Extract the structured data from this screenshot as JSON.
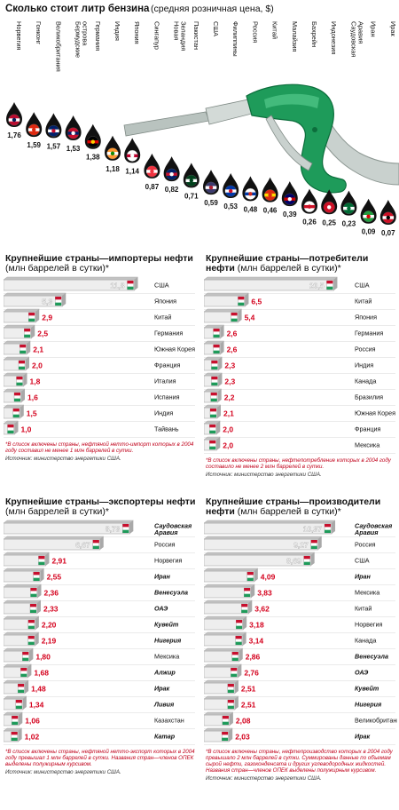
{
  "chart_data": [
    {
      "type": "scatter",
      "title": "Сколько стоит литр бензина",
      "subtitle": "(средняя розничная цена, $)",
      "categories": [
        "Норвегия",
        "Гонконг",
        "Великобритания",
        "Бермудские острова",
        "Германия",
        "Индия",
        "Япония",
        "Сингапур",
        "Новая Зеландия",
        "Пакистан",
        "США",
        "Филиппины",
        "Россия",
        "Китай",
        "Малайзия",
        "Бахрейн",
        "Индонезия",
        "Саудовская Аравия",
        "Иран",
        "Ирак"
      ],
      "value_labels": [
        "1,76",
        "1,59",
        "1,57",
        "1,53",
        "1,38",
        "1,18",
        "1,14",
        "0,87",
        "0,82",
        "0,71",
        "0,59",
        "0,53",
        "0,48",
        "0,46",
        "0,39",
        "0,26",
        "0,25",
        "0,23",
        "0,09",
        "0,07"
      ],
      "values": [
        1.76,
        1.59,
        1.57,
        1.53,
        1.38,
        1.18,
        1.14,
        0.87,
        0.82,
        0.71,
        0.59,
        0.53,
        0.48,
        0.46,
        0.39,
        0.26,
        0.25,
        0.23,
        0.09,
        0.07
      ],
      "colors": {
        "drop": "#111111",
        "nozzle": "#1e9b5a",
        "nozzle_dark": "#0c6e3c",
        "hose": "#cfd6d3"
      }
    },
    {
      "type": "bar",
      "title": "Крупнейшие страны—импортеры нефти",
      "subtitle": "(млн баррелей в сутки)*",
      "categories": [
        "США",
        "Япония",
        "Китай",
        "Германия",
        "Южная Корея",
        "Франция",
        "Италия",
        "Испания",
        "Индия",
        "Тайвань"
      ],
      "value_labels": [
        "11,8",
        "5,3",
        "2,9",
        "2,5",
        "2,1",
        "2,0",
        "1,8",
        "1,6",
        "1,5",
        "1,0"
      ],
      "values": [
        11.8,
        5.3,
        2.9,
        2.5,
        2.1,
        2.0,
        1.8,
        1.6,
        1.5,
        1.0
      ],
      "bold_categories": [],
      "xlim": [
        0,
        12
      ],
      "footnote": "*В список включены страны, нефтяной нетто-импорт которых в 2004 году составил не менее 1 млн баррелей в сутки.",
      "source": "Источник: министерство энергетики США."
    },
    {
      "type": "bar",
      "title": "Крупнейшие страны—потребители нефти",
      "subtitle": "(млн баррелей в сутки)*",
      "categories": [
        "США",
        "Китай",
        "Япония",
        "Германия",
        "Россия",
        "Индия",
        "Канада",
        "Бразилия",
        "Южная Корея",
        "Франция",
        "Мексика"
      ],
      "value_labels": [
        "20,5",
        "6,5",
        "5,4",
        "2,6",
        "2,6",
        "2,3",
        "2,3",
        "2,2",
        "2,1",
        "2,0",
        "2,0"
      ],
      "values": [
        20.5,
        6.5,
        5.4,
        2.6,
        2.6,
        2.3,
        2.3,
        2.2,
        2.1,
        2.0,
        2.0
      ],
      "bold_categories": [],
      "xlim": [
        0,
        21
      ],
      "footnote": "*В список включены страны, нефтепотребление которых в 2004 году составило не менее 2 млн баррелей в сутки.",
      "source": "Источник: министерство энергетики США."
    },
    {
      "type": "bar",
      "title": "Крупнейшие страны—экспортеры нефти",
      "subtitle": "(млн баррелей в сутки)*",
      "categories": [
        "Саудовская Аравия",
        "Россия",
        "Норвегия",
        "Иран",
        "Венесуэла",
        "ОАЭ",
        "Кувейт",
        "Нигерия",
        "Мексика",
        "Алжир",
        "Ирак",
        "Ливия",
        "Казахстан",
        "Катар"
      ],
      "value_labels": [
        "8,73",
        "6,67",
        "2,91",
        "2,55",
        "2,36",
        "2,33",
        "2,20",
        "2,19",
        "1,80",
        "1,68",
        "1,48",
        "1,34",
        "1,06",
        "1,02"
      ],
      "values": [
        8.73,
        6.67,
        2.91,
        2.55,
        2.36,
        2.33,
        2.2,
        2.19,
        1.8,
        1.68,
        1.48,
        1.34,
        1.06,
        1.02
      ],
      "bold_categories": [
        "Саудовская Аравия",
        "Иран",
        "Венесуэла",
        "ОАЭ",
        "Кувейт",
        "Нигерия",
        "Алжир",
        "Ирак",
        "Ливия",
        "Катар"
      ],
      "xlim": [
        0,
        9.2
      ],
      "footnote": "*В список включены страны, нефтяной нетто-экспорт которых в 2004 году превышал 1 млн баррелей в сутки. Названия стран—членов ОПЕК выделены полужирным курсивом.",
      "source": "Источник: министерство энергетики США."
    },
    {
      "type": "bar",
      "title": "Крупнейшие страны—производители нефти",
      "subtitle": "(млн баррелей в сутки)*",
      "categories": [
        "Саудовская Аравия",
        "Россия",
        "США",
        "Иран",
        "Мексика",
        "Китай",
        "Норвегия",
        "Канада",
        "Венесуэла",
        "ОАЭ",
        "Кувейт",
        "Нигерия",
        "Великобритания",
        "Ирак"
      ],
      "value_labels": [
        "10,37",
        "9,27",
        "8,69",
        "4,09",
        "3,83",
        "3,62",
        "3,18",
        "3,14",
        "2,86",
        "2,76",
        "2,51",
        "2,51",
        "2,08",
        "2,03"
      ],
      "values": [
        10.37,
        9.27,
        8.69,
        4.09,
        3.83,
        3.62,
        3.18,
        3.14,
        2.86,
        2.76,
        2.51,
        2.51,
        2.08,
        2.03
      ],
      "bold_categories": [
        "Саудовская Аравия",
        "Иран",
        "Венесуэла",
        "ОАЭ",
        "Кувейт",
        "Нигерия",
        "Ирак"
      ],
      "xlim": [
        0,
        10.8
      ],
      "footnote": "*В список включены страны, нефтепроизводство которых в 2004 году превышало 2 млн баррелей в сутки. Суммированы данные по объемам сырой нефти, газоконденсата и других углеводородных жидкостей. Названия стран—членов ОПЕК выделены полужирным курсивом.",
      "source": "Источник: министерство энергетики США."
    }
  ],
  "style": {
    "value_red": "#d4001c",
    "bar_light": "#eeeeee",
    "bar_dark": "#a9a9a9",
    "bar_top": "#c2c2c2"
  }
}
